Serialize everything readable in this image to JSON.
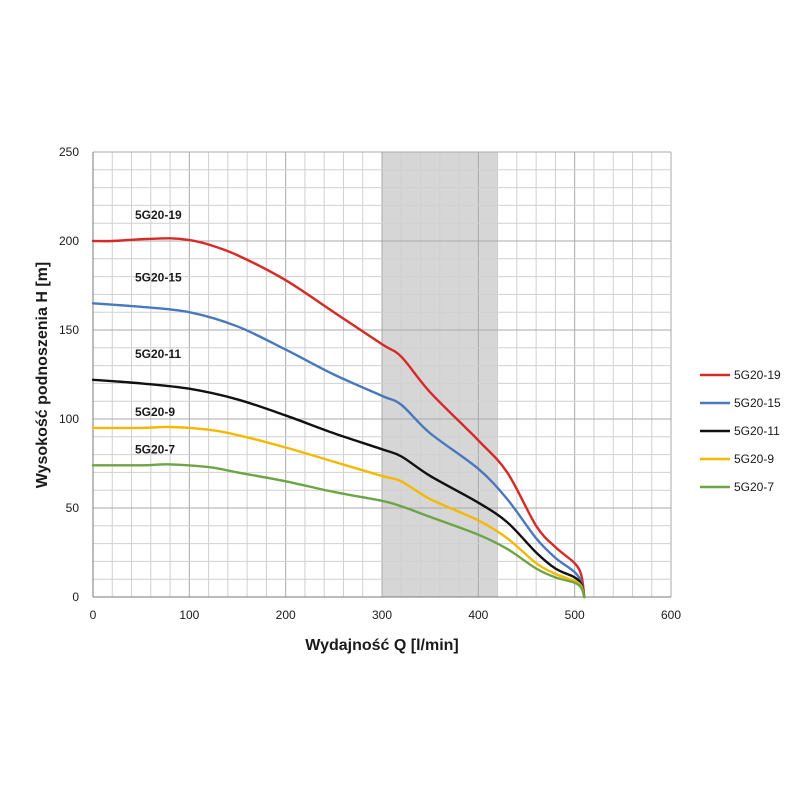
{
  "chart_data": {
    "type": "line",
    "xlabel": "Wydajność Q [l/min]",
    "ylabel": "Wysokość podnoszenia H [m]",
    "xlim": [
      0,
      600
    ],
    "ylim": [
      0,
      250
    ],
    "x_ticks": [
      "0",
      "100",
      "200",
      "300",
      "400",
      "500",
      "600"
    ],
    "y_ticks": [
      "0",
      "50",
      "100",
      "150",
      "200",
      "250"
    ],
    "grid": true,
    "legend_position": "right",
    "highlight_range": [
      300,
      420
    ],
    "series": [
      {
        "name": "5G20-19",
        "label": "5G20-19",
        "color": "#d62a26",
        "x": [
          0,
          20,
          50,
          80,
          100,
          120,
          150,
          200,
          250,
          300,
          320,
          350,
          400,
          430,
          460,
          480,
          500,
          507,
          510
        ],
        "y": [
          200,
          200,
          201,
          201.5,
          200.5,
          198,
          192,
          178,
          160,
          142,
          135,
          115,
          88,
          70,
          40,
          28,
          19,
          12,
          0
        ]
      },
      {
        "name": "5G20-15",
        "label": "5G20-15",
        "color": "#4a78bd",
        "x": [
          0,
          50,
          100,
          150,
          200,
          250,
          300,
          320,
          350,
          400,
          430,
          460,
          480,
          500,
          507,
          510
        ],
        "y": [
          165,
          163,
          160,
          152,
          139,
          125,
          113,
          108,
          92,
          72,
          55,
          33,
          22,
          14,
          8,
          0
        ]
      },
      {
        "name": "5G20-11",
        "label": "5G20-11",
        "color": "#111111",
        "x": [
          0,
          50,
          100,
          150,
          200,
          250,
          300,
          320,
          350,
          400,
          430,
          460,
          480,
          500,
          507,
          510
        ],
        "y": [
          122,
          120,
          117,
          111,
          102,
          92,
          83,
          79,
          68,
          53,
          42,
          25,
          16,
          11,
          7,
          0
        ]
      },
      {
        "name": "5G20-9",
        "label": "5G20-9",
        "color": "#f5b800",
        "x": [
          0,
          50,
          80,
          120,
          150,
          200,
          250,
          300,
          320,
          350,
          400,
          430,
          460,
          480,
          500,
          507,
          510
        ],
        "y": [
          95,
          95,
          95.5,
          94,
          91,
          84,
          76,
          68,
          65,
          55,
          43,
          33,
          19,
          13,
          9,
          6,
          0
        ]
      },
      {
        "name": "5G20-7",
        "label": "5G20-7",
        "color": "#6ba544",
        "x": [
          0,
          50,
          80,
          120,
          150,
          200,
          250,
          300,
          320,
          350,
          400,
          430,
          460,
          480,
          500,
          507,
          510
        ],
        "y": [
          74,
          74,
          74.5,
          73,
          70,
          65,
          59,
          54,
          51,
          45,
          35,
          27,
          16,
          11,
          8,
          5,
          0
        ]
      }
    ]
  }
}
